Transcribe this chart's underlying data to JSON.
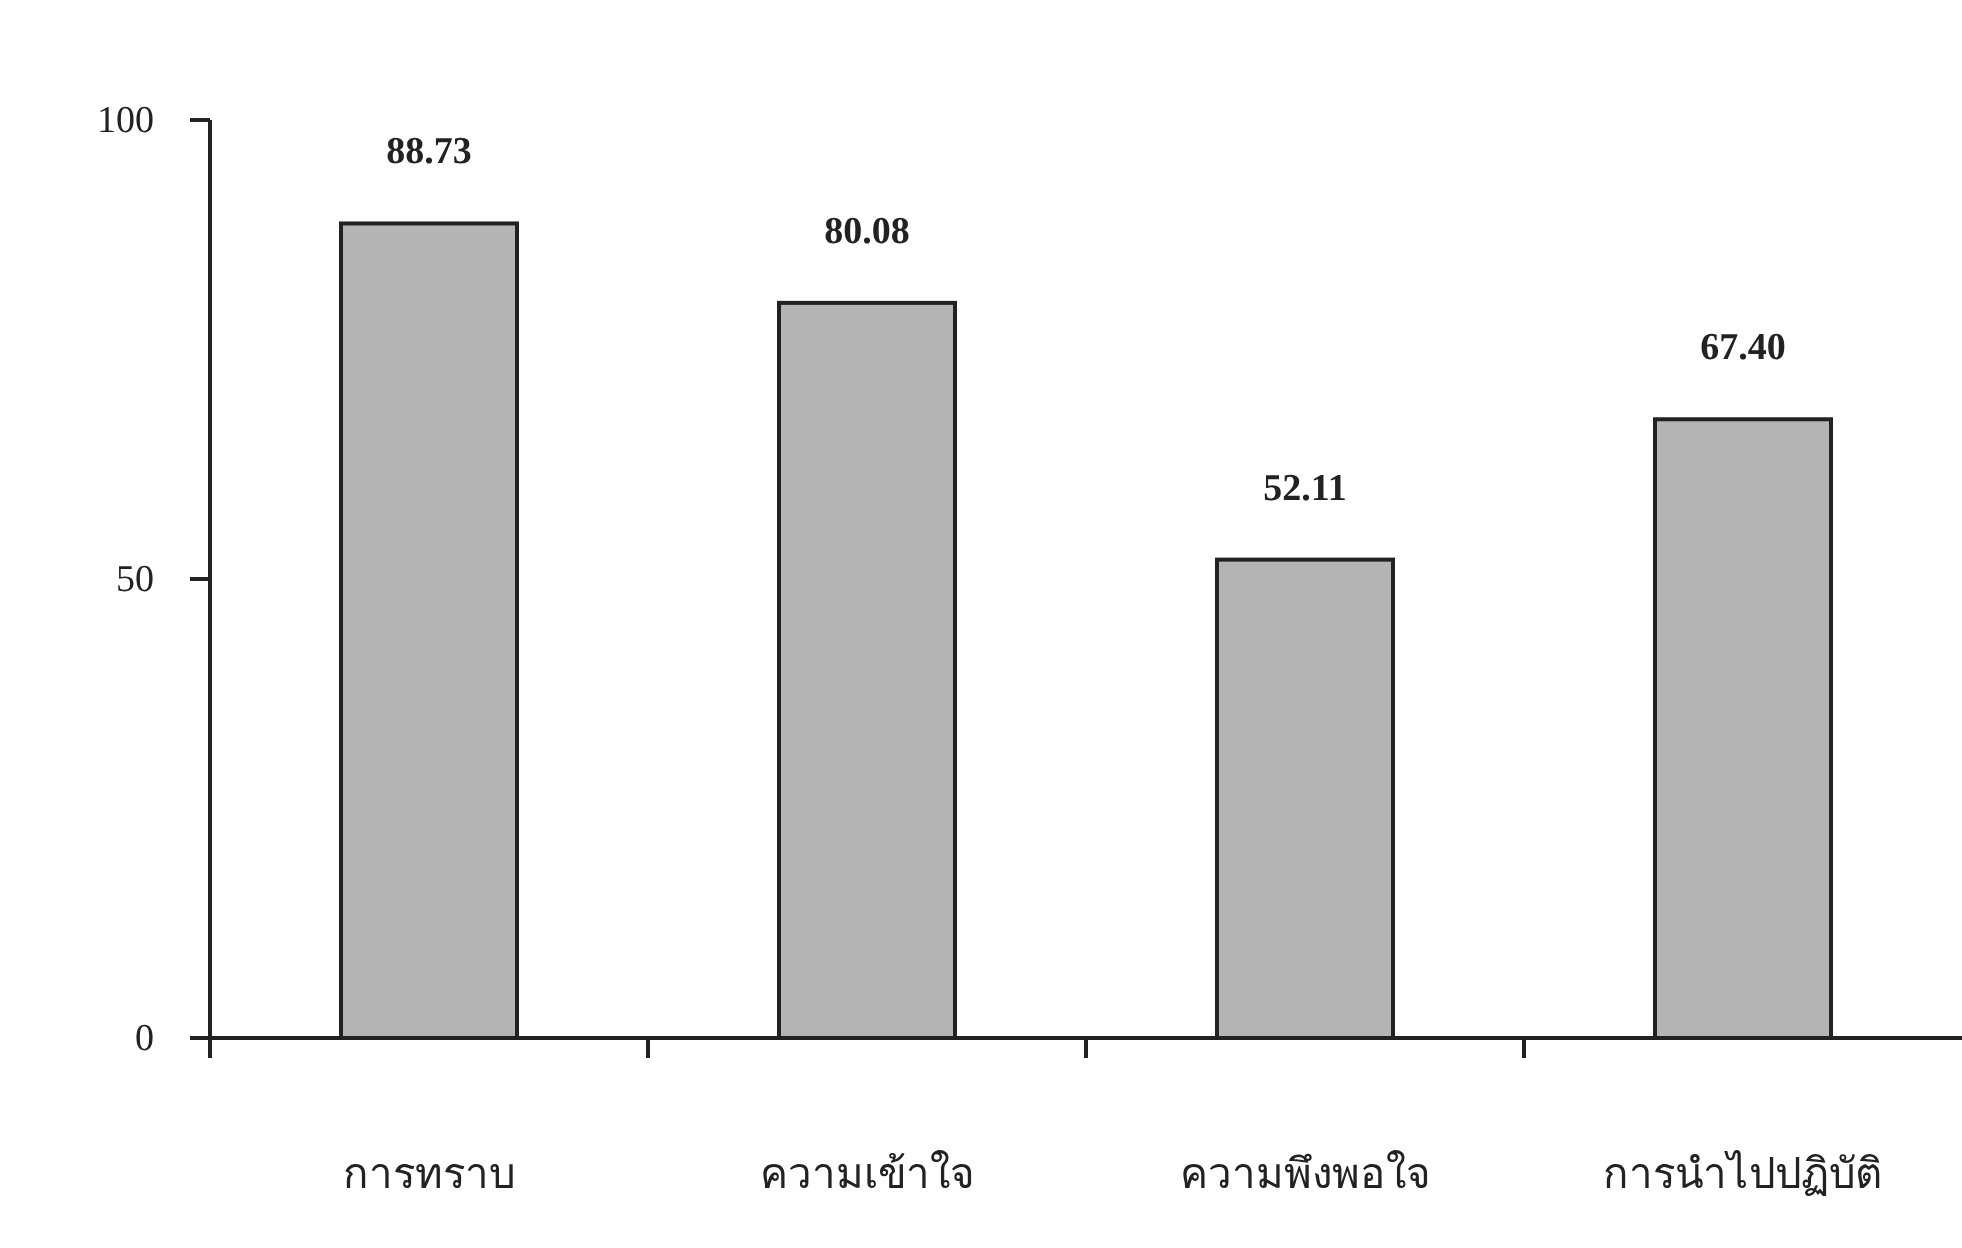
{
  "chart_data": {
    "type": "bar",
    "categories": [
      "การทราบ",
      "ความเข้าใจ",
      "ความพึงพอใจ",
      "การนำไปปฏิบัติ"
    ],
    "values": [
      88.73,
      80.08,
      52.11,
      67.4
    ],
    "value_labels": [
      "88.73",
      "80.08",
      "52.11",
      "67.40"
    ],
    "color": "#b4b4b4",
    "ylim": [
      0,
      100
    ],
    "yticks": [
      0,
      50,
      100
    ],
    "grid": false
  }
}
